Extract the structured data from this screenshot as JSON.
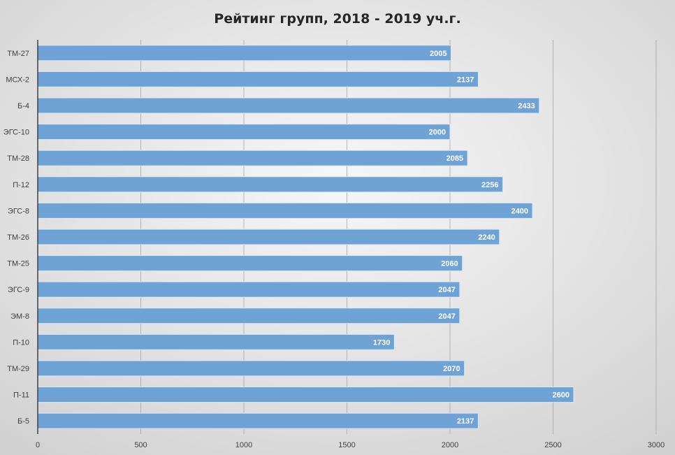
{
  "chart_data": {
    "type": "bar",
    "orientation": "horizontal",
    "title": "Рейтинг групп, 2018 - 2019 уч.г.",
    "xlabel": "",
    "ylabel": "",
    "categories": [
      "ТМ-27",
      "МСХ-2",
      "Б-4",
      "ЭГС-10",
      "ТМ-28",
      "П-12",
      "ЭГС-8",
      "ТМ-26",
      "ТМ-25",
      "ЭГС-9",
      "ЭМ-8",
      "П-10",
      "ТМ-29",
      "П-11",
      "Б-5"
    ],
    "values": [
      2005,
      2137,
      2433,
      2000,
      2085,
      2256,
      2400,
      2240,
      2060,
      2047,
      2047,
      1730,
      2070,
      2600,
      2137
    ],
    "xlim": [
      0,
      3000
    ],
    "xticks": [
      0,
      500,
      1000,
      1500,
      2000,
      2500,
      3000
    ],
    "grid": true,
    "legend": "none",
    "data_labels": true,
    "bar_color": "#6fa3d6",
    "background": "#e2e2e2"
  }
}
